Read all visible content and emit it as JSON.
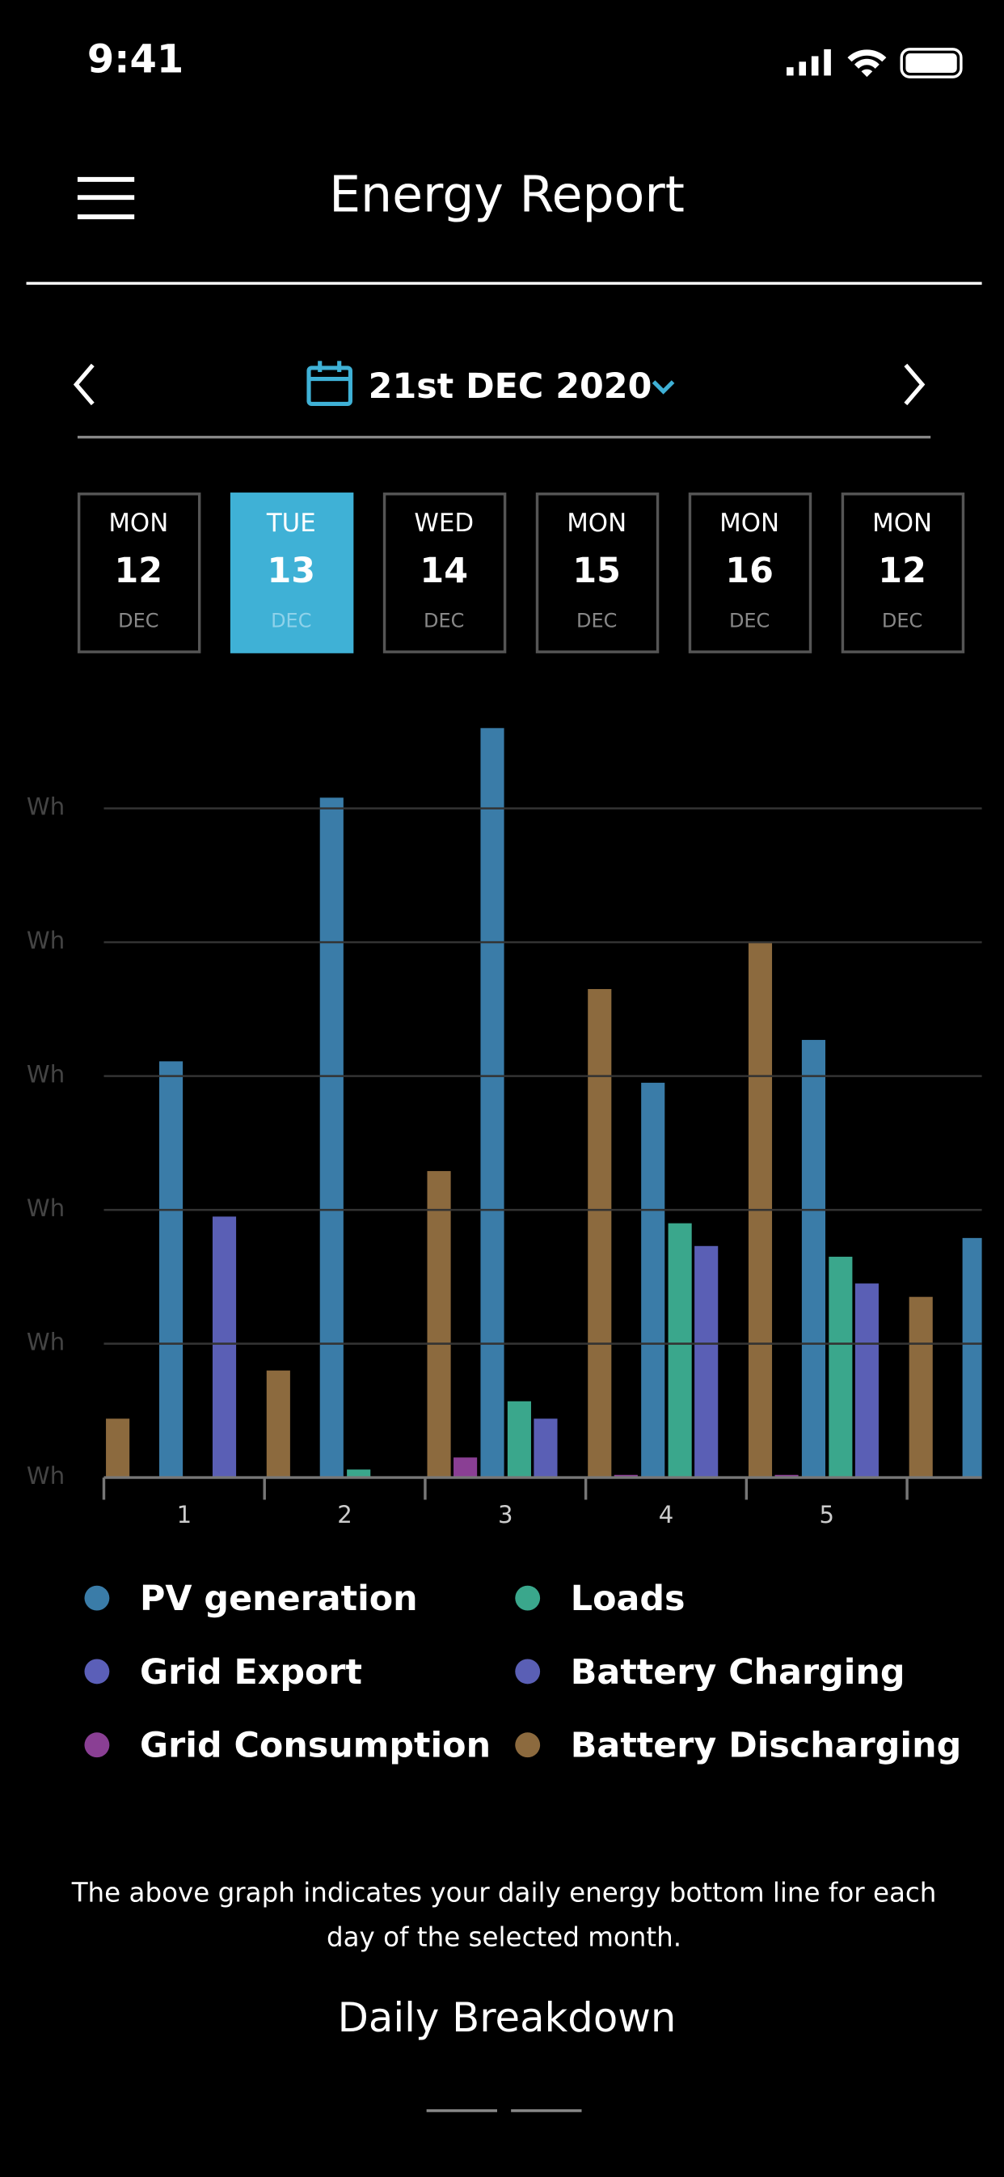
{
  "status_bar": {
    "time": "9:41"
  },
  "header": {
    "title": "Energy Report"
  },
  "date_picker": {
    "date": "21st DEC 2020"
  },
  "days": [
    {
      "weekday": "MON",
      "day": "12",
      "month": "DEC"
    },
    {
      "weekday": "TUE",
      "day": "13",
      "month": "DEC"
    },
    {
      "weekday": "WED",
      "day": "14",
      "month": "DEC"
    },
    {
      "weekday": "MON",
      "day": "15",
      "month": "DEC"
    },
    {
      "weekday": "MON",
      "day": "16",
      "month": "DEC"
    },
    {
      "weekday": "MON",
      "day": "12",
      "month": "DEC"
    }
  ],
  "chart_data": {
    "type": "bar",
    "categories": [
      "1",
      "2",
      "3",
      "4",
      "5",
      null
    ],
    "series": [
      {
        "name": "PV generation",
        "color": "#3a7ca8",
        "values": [
          3.11,
          5.08,
          5.6,
          2.95,
          3.27,
          1.79
        ]
      },
      {
        "name": "Loads",
        "color": "#3aa78c",
        "values": [
          null,
          0.06,
          0.57,
          1.9,
          1.65,
          null
        ]
      },
      {
        "name": "Grid Export",
        "color": "#5b5fb8",
        "values": [
          null,
          null,
          null,
          null,
          null,
          null
        ]
      },
      {
        "name": "Battery Charging",
        "color": "#5a5fb5",
        "values": [
          1.95,
          null,
          0.44,
          1.73,
          1.45,
          null
        ]
      },
      {
        "name": "Grid Consumption",
        "color": "#8a3f94",
        "values": [
          null,
          null,
          0.15,
          0.02,
          0.02,
          null
        ]
      },
      {
        "name": "Battery Discharging",
        "color": "#8c6a3e",
        "values": [
          0.44,
          0.8,
          2.29,
          3.65,
          4.0,
          1.35
        ]
      }
    ],
    "ylim": [
      0,
      5.6
    ],
    "yticks": [
      {
        "value": 0,
        "label": "Wh"
      },
      {
        "value": 1,
        "label": "Wh"
      },
      {
        "value": 2,
        "label": "Wh"
      },
      {
        "value": 3,
        "label": "Wh"
      },
      {
        "value": 4,
        "label": "Wh"
      },
      {
        "value": 5,
        "label": "Wh"
      }
    ],
    "grid": true
  },
  "description": "The above graph indicates your daily energy bottom line for each day of the selected month.",
  "footer": {
    "title": "Daily Breakdown"
  }
}
